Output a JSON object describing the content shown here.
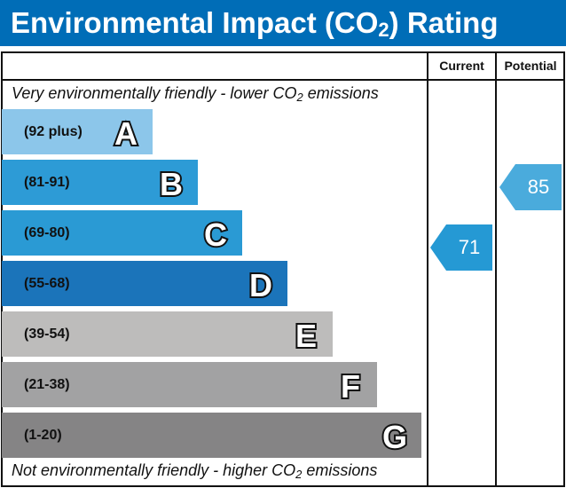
{
  "title": {
    "pre": "Environmental Impact (CO",
    "sub": "2",
    "post": ") Rating"
  },
  "columns": {
    "current": "Current",
    "potential": "Potential"
  },
  "top_caption": {
    "pre": "Very environmentally friendly - lower CO",
    "sub": "2",
    "post": " emissions"
  },
  "bottom_caption": {
    "pre": "Not environmentally friendly - higher CO",
    "sub": "2",
    "post": " emissions"
  },
  "chart_data": {
    "type": "bar",
    "bands": [
      {
        "letter": "A",
        "range": "(92 plus)",
        "color": "#8cc6ea"
      },
      {
        "letter": "B",
        "range": "(81-91)",
        "color": "#2d9bd6"
      },
      {
        "letter": "C",
        "range": "(69-80)",
        "color": "#2a9ad4"
      },
      {
        "letter": "D",
        "range": "(55-68)",
        "color": "#1b74ba"
      },
      {
        "letter": "E",
        "range": "(39-54)",
        "color": "#bdbcbb"
      },
      {
        "letter": "F",
        "range": "(21-38)",
        "color": "#a2a2a3"
      },
      {
        "letter": "G",
        "range": "(1-20)",
        "color": "#858485"
      }
    ],
    "current": {
      "value": "71",
      "band": "C",
      "color": "#2599d4"
    },
    "potential": {
      "value": "85",
      "band": "B",
      "color": "#4aabdc"
    }
  }
}
